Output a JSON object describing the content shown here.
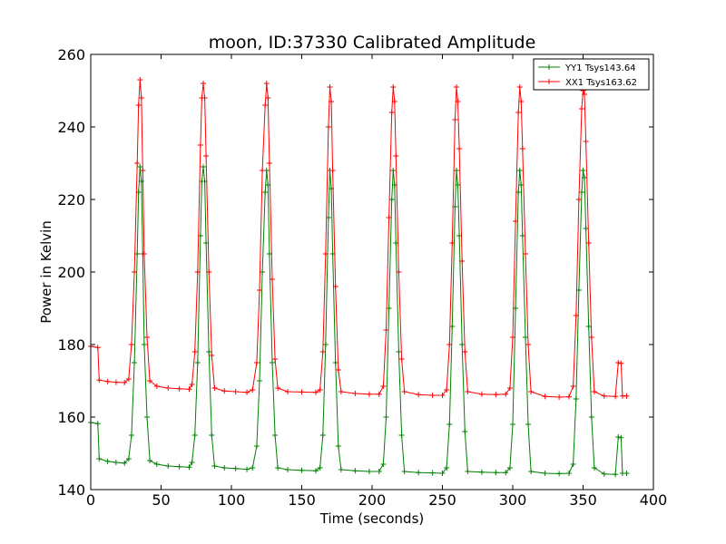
{
  "chart_data": {
    "type": "line",
    "title": "moon, ID:37330 Calibrated Amplitude",
    "xlabel": "Time (seconds)",
    "ylabel": "Power in Kelvin",
    "xlim": [
      0,
      400
    ],
    "ylim": [
      140,
      260
    ],
    "xticks": [
      "0",
      "50",
      "100",
      "150",
      "200",
      "250",
      "300",
      "350",
      "400"
    ],
    "yticks": [
      "140",
      "160",
      "180",
      "200",
      "220",
      "240",
      "260"
    ],
    "grid": false,
    "legend_position": "top-right",
    "marker": "plus",
    "series": [
      {
        "name": "YY1 Tsys143.64",
        "color": "#008000",
        "points": [
          [
            0,
            158.5
          ],
          [
            5,
            158.2
          ],
          [
            6,
            148.5
          ],
          [
            12,
            147.8
          ],
          [
            18,
            147.5
          ],
          [
            24,
            147.3
          ],
          [
            27,
            148.5
          ],
          [
            29,
            155
          ],
          [
            31,
            175
          ],
          [
            33,
            205
          ],
          [
            34,
            222
          ],
          [
            35,
            229
          ],
          [
            36,
            225
          ],
          [
            37,
            205
          ],
          [
            38,
            180
          ],
          [
            40,
            160
          ],
          [
            42,
            148
          ],
          [
            47,
            147
          ],
          [
            55,
            146.5
          ],
          [
            63,
            146.3
          ],
          [
            70,
            146.2
          ],
          [
            72,
            147.5
          ],
          [
            74,
            155
          ],
          [
            76,
            175
          ],
          [
            78,
            210
          ],
          [
            79,
            225
          ],
          [
            80,
            229
          ],
          [
            81,
            225
          ],
          [
            82,
            208
          ],
          [
            84,
            178
          ],
          [
            86,
            155
          ],
          [
            88,
            146.5
          ],
          [
            95,
            146
          ],
          [
            103,
            145.8
          ],
          [
            111,
            145.6
          ],
          [
            115,
            146
          ],
          [
            118,
            152
          ],
          [
            120,
            170
          ],
          [
            122,
            200
          ],
          [
            124,
            222
          ],
          [
            125,
            228
          ],
          [
            126,
            224
          ],
          [
            127,
            205
          ],
          [
            129,
            175
          ],
          [
            131,
            155
          ],
          [
            133,
            146
          ],
          [
            140,
            145.5
          ],
          [
            150,
            145.3
          ],
          [
            160,
            145.2
          ],
          [
            163,
            146
          ],
          [
            165,
            155
          ],
          [
            167,
            180
          ],
          [
            169,
            215
          ],
          [
            170,
            228
          ],
          [
            171,
            223
          ],
          [
            172,
            205
          ],
          [
            174,
            175
          ],
          [
            176,
            152
          ],
          [
            178,
            145.5
          ],
          [
            188,
            145.2
          ],
          [
            198,
            145
          ],
          [
            205,
            145
          ],
          [
            208,
            147
          ],
          [
            210,
            160
          ],
          [
            212,
            190
          ],
          [
            214,
            220
          ],
          [
            215,
            228
          ],
          [
            216,
            224
          ],
          [
            217,
            208
          ],
          [
            219,
            178
          ],
          [
            221,
            155
          ],
          [
            223,
            145
          ],
          [
            233,
            144.7
          ],
          [
            243,
            144.6
          ],
          [
            250,
            144.5
          ],
          [
            253,
            146
          ],
          [
            255,
            158
          ],
          [
            257,
            185
          ],
          [
            259,
            218
          ],
          [
            260,
            228
          ],
          [
            261,
            224
          ],
          [
            262,
            210
          ],
          [
            264,
            180
          ],
          [
            266,
            156
          ],
          [
            268,
            145
          ],
          [
            278,
            144.8
          ],
          [
            288,
            144.7
          ],
          [
            295,
            144.7
          ],
          [
            298,
            146
          ],
          [
            300,
            158
          ],
          [
            302,
            190
          ],
          [
            304,
            222
          ],
          [
            305,
            228
          ],
          [
            306,
            224
          ],
          [
            307,
            210
          ],
          [
            309,
            182
          ],
          [
            311,
            158
          ],
          [
            313,
            145
          ],
          [
            323,
            144.5
          ],
          [
            333,
            144.4
          ],
          [
            340,
            144.5
          ],
          [
            343,
            147
          ],
          [
            345,
            165
          ],
          [
            347,
            195
          ],
          [
            349,
            222
          ],
          [
            350,
            228
          ],
          [
            351,
            226
          ],
          [
            352,
            212
          ],
          [
            354,
            185
          ],
          [
            356,
            160
          ],
          [
            358,
            146
          ],
          [
            365,
            144.3
          ],
          [
            373,
            144.2
          ],
          [
            375,
            154.5
          ],
          [
            377,
            154.3
          ],
          [
            378,
            144.5
          ],
          [
            381,
            144.5
          ]
        ]
      },
      {
        "name": "XX1 Tsys163.62",
        "color": "#ff0000",
        "points": [
          [
            0,
            179.5
          ],
          [
            5,
            179.2
          ],
          [
            6,
            170.2
          ],
          [
            12,
            169.8
          ],
          [
            18,
            169.6
          ],
          [
            24,
            169.5
          ],
          [
            27,
            170.5
          ],
          [
            29,
            180
          ],
          [
            31,
            200
          ],
          [
            33,
            230
          ],
          [
            34,
            246
          ],
          [
            35,
            253
          ],
          [
            36,
            248
          ],
          [
            37,
            228
          ],
          [
            38,
            205
          ],
          [
            40,
            182
          ],
          [
            42,
            170
          ],
          [
            47,
            168.5
          ],
          [
            55,
            168
          ],
          [
            63,
            167.8
          ],
          [
            70,
            167.7
          ],
          [
            72,
            169
          ],
          [
            74,
            178
          ],
          [
            76,
            200
          ],
          [
            78,
            235
          ],
          [
            79,
            248
          ],
          [
            80,
            252
          ],
          [
            81,
            248
          ],
          [
            82,
            232
          ],
          [
            84,
            200
          ],
          [
            86,
            177
          ],
          [
            88,
            168
          ],
          [
            95,
            167.2
          ],
          [
            103,
            167
          ],
          [
            111,
            166.8
          ],
          [
            115,
            167.5
          ],
          [
            118,
            175
          ],
          [
            120,
            195
          ],
          [
            122,
            228
          ],
          [
            124,
            246
          ],
          [
            125,
            252
          ],
          [
            126,
            248
          ],
          [
            127,
            230
          ],
          [
            129,
            198
          ],
          [
            131,
            176
          ],
          [
            133,
            168
          ],
          [
            140,
            167
          ],
          [
            150,
            166.9
          ],
          [
            160,
            166.8
          ],
          [
            163,
            167.5
          ],
          [
            165,
            178
          ],
          [
            167,
            205
          ],
          [
            169,
            240
          ],
          [
            170,
            251
          ],
          [
            171,
            247
          ],
          [
            172,
            228
          ],
          [
            174,
            196
          ],
          [
            176,
            173
          ],
          [
            178,
            167
          ],
          [
            188,
            166.5
          ],
          [
            198,
            166.3
          ],
          [
            205,
            166.3
          ],
          [
            208,
            168.5
          ],
          [
            210,
            184
          ],
          [
            212,
            215
          ],
          [
            214,
            244
          ],
          [
            215,
            251
          ],
          [
            216,
            247
          ],
          [
            217,
            232
          ],
          [
            219,
            200
          ],
          [
            221,
            176
          ],
          [
            223,
            167
          ],
          [
            233,
            166.2
          ],
          [
            243,
            166
          ],
          [
            250,
            166
          ],
          [
            253,
            167.5
          ],
          [
            255,
            180
          ],
          [
            257,
            208
          ],
          [
            259,
            242
          ],
          [
            260,
            251
          ],
          [
            261,
            247
          ],
          [
            262,
            234
          ],
          [
            264,
            203
          ],
          [
            266,
            178
          ],
          [
            268,
            167
          ],
          [
            278,
            166.3
          ],
          [
            288,
            166.2
          ],
          [
            295,
            166.3
          ],
          [
            298,
            168
          ],
          [
            300,
            182
          ],
          [
            302,
            214
          ],
          [
            304,
            244
          ],
          [
            305,
            251
          ],
          [
            306,
            247
          ],
          [
            307,
            234
          ],
          [
            309,
            205
          ],
          [
            311,
            180
          ],
          [
            313,
            167
          ],
          [
            323,
            165.7
          ],
          [
            333,
            165.5
          ],
          [
            340,
            165.6
          ],
          [
            343,
            168.5
          ],
          [
            345,
            188
          ],
          [
            347,
            220
          ],
          [
            349,
            245
          ],
          [
            350,
            250
          ],
          [
            351,
            249
          ],
          [
            352,
            236
          ],
          [
            354,
            208
          ],
          [
            356,
            182
          ],
          [
            358,
            167
          ],
          [
            365,
            165.8
          ],
          [
            373,
            165.7
          ],
          [
            375,
            175
          ],
          [
            377,
            174.8
          ],
          [
            378,
            165.8
          ],
          [
            381,
            165.8
          ]
        ]
      }
    ]
  }
}
